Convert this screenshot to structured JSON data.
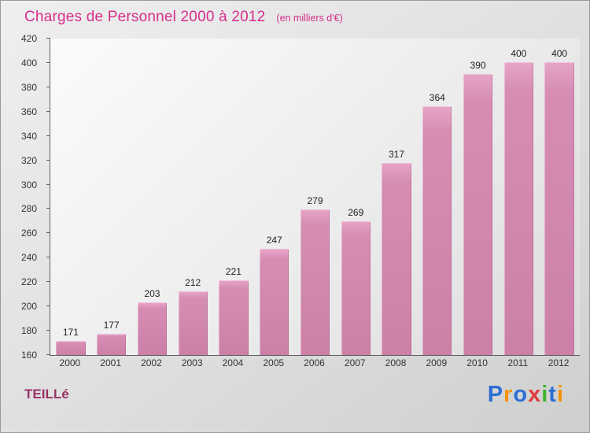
{
  "title": "Charges de Personnel 2000 à 2012",
  "subtitle": "(en milliers d'€)",
  "footer": {
    "commune": "TEILLé"
  },
  "logo": {
    "name": "Proxiti",
    "letters": [
      {
        "ch": "P",
        "color": "#2b6fd4"
      },
      {
        "ch": "r",
        "color": "#f5920a"
      },
      {
        "ch": "o",
        "color": "#2b6fd4"
      },
      {
        "ch": "x",
        "color": "#e03a3a"
      },
      {
        "ch": "i",
        "color": "#3bb32a"
      },
      {
        "ch": "t",
        "color": "#2b6fd4"
      },
      {
        "ch": "i",
        "color": "#f5920a"
      }
    ]
  },
  "chart_data": {
    "type": "bar",
    "title": "Charges de Personnel 2000 à 2012",
    "subtitle": "(en milliers d'€)",
    "categories": [
      "2000",
      "2001",
      "2002",
      "2003",
      "2004",
      "2005",
      "2006",
      "2007",
      "2008",
      "2009",
      "2010",
      "2011",
      "2012"
    ],
    "values": [
      171,
      177,
      203,
      212,
      221,
      247,
      279,
      269,
      317,
      364,
      390,
      400,
      400
    ],
    "xlabel": "",
    "ylabel": "",
    "ylim": [
      160,
      420
    ],
    "ytick_step": 20,
    "grid": false,
    "legend": false,
    "bar_color": "#cc80a8",
    "value_labels": true
  }
}
